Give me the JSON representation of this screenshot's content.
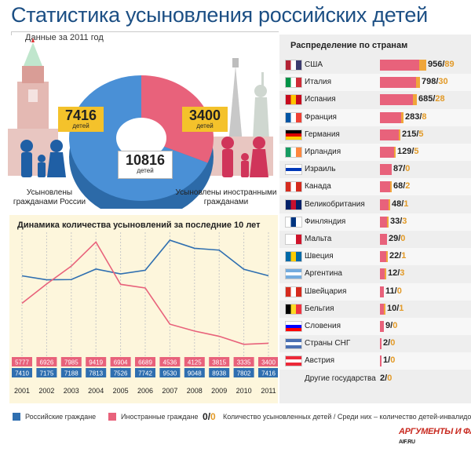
{
  "header": {
    "title": "Статистика усыновления российских детей",
    "subtitle": "Данные за 2011 год"
  },
  "summary": {
    "domestic": {
      "value": "7416",
      "unit": "детей",
      "caption": "Усыновлены гражданами России"
    },
    "foreign": {
      "value": "3400",
      "unit": "детей",
      "caption": "Усыновлены иностранными гражданами"
    },
    "total": {
      "value": "10816",
      "unit": "детей"
    }
  },
  "countries_panel": {
    "title": "Распределение по странам",
    "rows": [
      {
        "name": "США",
        "total": 956,
        "disabled": 89,
        "flag": "us-flag"
      },
      {
        "name": "Италия",
        "total": 798,
        "disabled": 30,
        "flag": "italy-flag"
      },
      {
        "name": "Испания",
        "total": 685,
        "disabled": 28,
        "flag": "spain-flag"
      },
      {
        "name": "Франция",
        "total": 283,
        "disabled": 8,
        "flag": "france-flag"
      },
      {
        "name": "Германия",
        "total": 215,
        "disabled": 5,
        "flag": "germany-flag"
      },
      {
        "name": "Ирландия",
        "total": 129,
        "disabled": 5,
        "flag": "ireland-flag"
      },
      {
        "name": "Израиль",
        "total": 87,
        "disabled": 0,
        "flag": "israel-flag"
      },
      {
        "name": "Канада",
        "total": 68,
        "disabled": 2,
        "flag": "canada-flag"
      },
      {
        "name": "Великобритания",
        "total": 48,
        "disabled": 1,
        "flag": "uk-flag"
      },
      {
        "name": "Финляндия",
        "total": 33,
        "disabled": 3,
        "flag": "finland-flag"
      },
      {
        "name": "Мальта",
        "total": 29,
        "disabled": 0,
        "flag": "malta-flag"
      },
      {
        "name": "Швеция",
        "total": 22,
        "disabled": 1,
        "flag": "sweden-flag"
      },
      {
        "name": "Аргентина",
        "total": 12,
        "disabled": 3,
        "flag": "argentina-flag"
      },
      {
        "name": "Швейцария",
        "total": 11,
        "disabled": 0,
        "flag": "switzerland-flag"
      },
      {
        "name": "Бельгия",
        "total": 10,
        "disabled": 1,
        "flag": "belgium-flag"
      },
      {
        "name": "Словения",
        "total": 9,
        "disabled": 0,
        "flag": "slovenia-flag"
      },
      {
        "name": "Страны СНГ",
        "total": 2,
        "disabled": 0,
        "flag": "cis-flag"
      },
      {
        "name": "Австрия",
        "total": 1,
        "disabled": 0,
        "flag": "austria-flag"
      },
      {
        "name": "Другие государства",
        "total": 2,
        "disabled": 0,
        "flag": ""
      }
    ]
  },
  "chart_data": [
    {
      "type": "pie",
      "values": [
        7416,
        3400
      ],
      "colors": [
        "#4a90d6",
        "#e8627b"
      ]
    },
    {
      "type": "line",
      "title": "Динамика количества усыновлений за последние 10 лет",
      "categories": [
        "2001",
        "2002",
        "2003",
        "2004",
        "2005",
        "2006",
        "2007",
        "2008",
        "2009",
        "2010",
        "2011"
      ],
      "series": [
        {
          "name": "Российские граждане",
          "color": "#2f6fb0",
          "values": [
            7410,
            7175,
            7188,
            7813,
            7526,
            7742,
            9530,
            9048,
            8938,
            7802,
            7416
          ]
        },
        {
          "name": "Иностранные граждане",
          "color": "#e8627b",
          "values": [
            5777,
            6926,
            7985,
            9419,
            6904,
            6689,
            4536,
            4125,
            3815,
            3335,
            3400
          ]
        }
      ],
      "ylim": [
        3000,
        10000
      ]
    },
    {
      "type": "bar",
      "categories": [
        "США",
        "Италия",
        "Испания",
        "Франция",
        "Германия",
        "Ирландия",
        "Израиль",
        "Канада",
        "Великобритания",
        "Финляндия",
        "Мальта",
        "Швеция",
        "Аргентина",
        "Швейцария",
        "Бельгия",
        "Словения",
        "Страны СНГ",
        "Австрия",
        "Другие государства"
      ],
      "series": [
        {
          "values": [
            956,
            798,
            685,
            283,
            215,
            129,
            87,
            68,
            48,
            33,
            29,
            22,
            12,
            11,
            10,
            9,
            2,
            1,
            2
          ]
        },
        {
          "values": [
            89,
            30,
            28,
            8,
            5,
            5,
            0,
            2,
            1,
            3,
            0,
            1,
            3,
            0,
            1,
            0,
            0,
            0,
            0
          ]
        }
      ]
    }
  ],
  "legend": {
    "domestic": "Российские граждане",
    "foreign": "Иностранные граждане",
    "sample_a": "0",
    "sample_sep": "/",
    "sample_b": "0",
    "explanation": "Количество усыновленных детей / Среди них – количество детей-инвалидов"
  },
  "logo": {
    "main": "АРГУМЕНТЫ И ФАКТЫ",
    "url": "AIF.RU"
  }
}
